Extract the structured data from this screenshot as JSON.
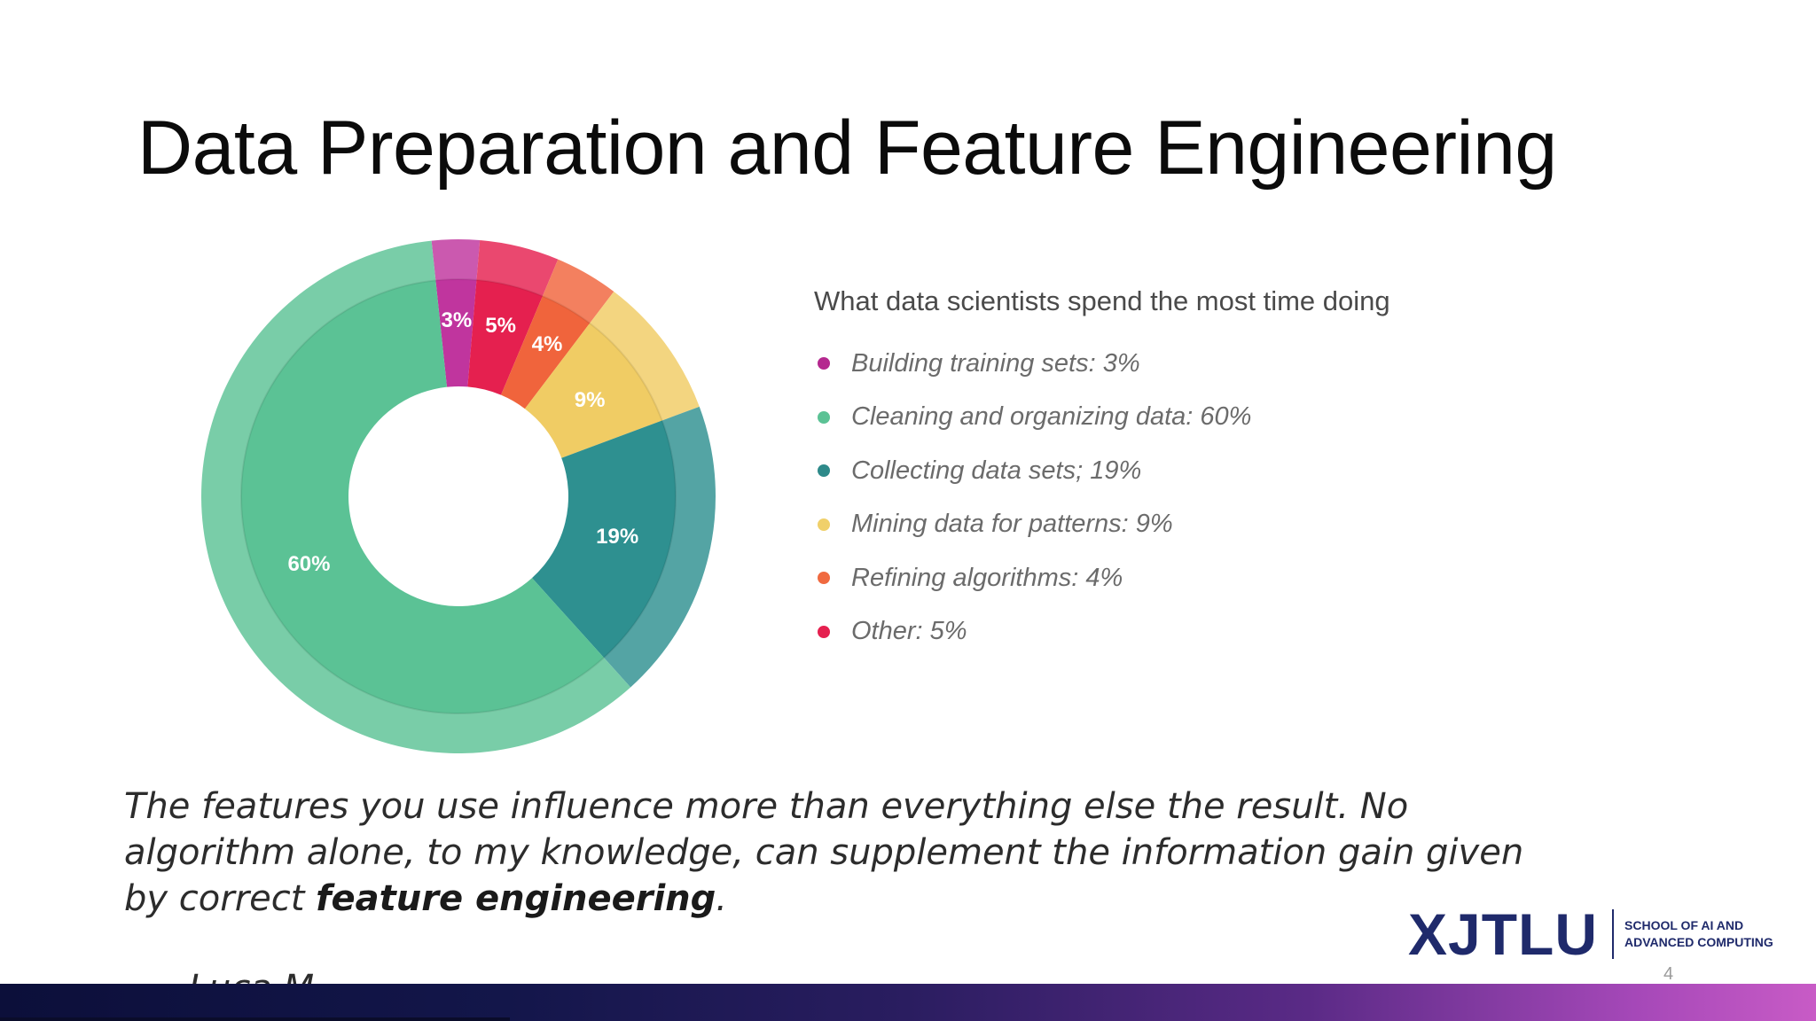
{
  "slide": {
    "title": "Data Preparation and Feature Engineering",
    "page_number": "4"
  },
  "chart_data": {
    "type": "pie",
    "title": "What data scientists spend the most time doing",
    "donut": true,
    "categories": [
      "Building training sets",
      "Other",
      "Refining algorithms",
      "Mining data for patterns",
      "Collecting data sets",
      "Cleaning and organizing data"
    ],
    "values": [
      3,
      5,
      4,
      9,
      19,
      60
    ],
    "value_labels": [
      "3%",
      "5%",
      "4%",
      "9%",
      "19%",
      "60%"
    ],
    "colors": [
      "#c0359e",
      "#e5204f",
      "#f0643c",
      "#f0cc64",
      "#2e9090",
      "#5bc295"
    ],
    "legend": [
      {
        "text": "Building training sets: 3%",
        "color": "#b5288f"
      },
      {
        "text": "Cleaning and organizing data: 60%",
        "color": "#5bc295"
      },
      {
        "text": "Collecting data sets; 19%",
        "color": "#2e8a8a"
      },
      {
        "text": "Mining data for patterns: 9%",
        "color": "#f0d06a"
      },
      {
        "text": "Refining algorithms: 4%",
        "color": "#f06a40"
      },
      {
        "text": "Other: 5%",
        "color": "#e5204f"
      }
    ],
    "legend_placement": "right"
  },
  "quote": {
    "text_before": "The features you use influence more than everything else the result. No algorithm alone, to my knowledge, can supplement the information gain given by correct ",
    "bold": "feature engineering",
    "text_after": ".",
    "author": "— Luca M"
  },
  "logo": {
    "main": "XJTLU",
    "sub": "SCHOOL OF AI AND\nADVANCED COMPUTING"
  }
}
